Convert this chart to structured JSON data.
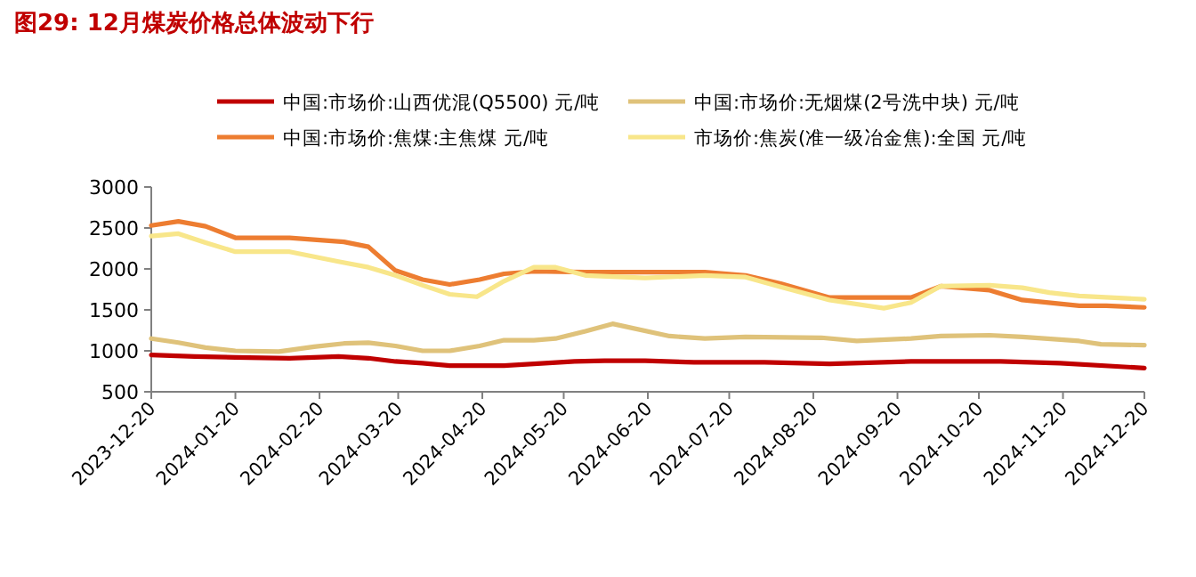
{
  "chart_data": {
    "type": "line",
    "title": "图29: 12月煤炭价格总体波动下行",
    "xlim": [
      "2023-12-20",
      "2024-12-20"
    ],
    "xticks": [
      "2023-12-20",
      "2024-01-20",
      "2024-02-20",
      "2024-03-20",
      "2024-04-20",
      "2024-05-20",
      "2024-06-20",
      "2024-07-20",
      "2024-08-20",
      "2024-09-20",
      "2024-10-20",
      "2024-11-20",
      "2024-12-20"
    ],
    "ylim": [
      500,
      3000
    ],
    "yticks": [
      500,
      1000,
      1500,
      2000,
      2500,
      3000
    ],
    "grid": false,
    "legend": "top",
    "marker": "none",
    "line_style": "solid",
    "series": [
      {
        "name": "中国:市场价:山西优混(Q5500) 元/吨",
        "color": "#c00000",
        "x": [
          "2023-12-20",
          "2024-01-05",
          "2024-01-20",
          "2024-02-09",
          "2024-02-27",
          "2024-03-09",
          "2024-03-19",
          "2024-03-29",
          "2024-04-08",
          "2024-04-28",
          "2024-05-09",
          "2024-05-24",
          "2024-06-04",
          "2024-06-19",
          "2024-07-07",
          "2024-08-02",
          "2024-08-26",
          "2024-09-25",
          "2024-10-28",
          "2024-11-19",
          "2024-12-20"
        ],
        "values": [
          950,
          930,
          920,
          910,
          930,
          910,
          870,
          850,
          820,
          820,
          840,
          870,
          880,
          880,
          860,
          860,
          840,
          870,
          870,
          850,
          790
        ]
      },
      {
        "name": "中国:市场价:无烟煤(2号洗中块) 元/吨",
        "color": "#dfc27a",
        "x": [
          "2023-12-20",
          "2023-12-30",
          "2024-01-09",
          "2024-01-20",
          "2024-02-05",
          "2024-02-18",
          "2024-02-29",
          "2024-03-09",
          "2024-03-19",
          "2024-03-29",
          "2024-04-08",
          "2024-04-19",
          "2024-04-28",
          "2024-05-09",
          "2024-05-17",
          "2024-05-28",
          "2024-06-07",
          "2024-06-28",
          "2024-07-11",
          "2024-07-26",
          "2024-08-23",
          "2024-09-05",
          "2024-09-25",
          "2024-10-06",
          "2024-10-24",
          "2024-11-05",
          "2024-11-26",
          "2024-12-04",
          "2024-12-20"
        ],
        "values": [
          1150,
          1100,
          1040,
          1000,
          990,
          1050,
          1090,
          1100,
          1060,
          1000,
          1000,
          1060,
          1130,
          1130,
          1150,
          1240,
          1330,
          1180,
          1150,
          1170,
          1160,
          1120,
          1150,
          1180,
          1190,
          1170,
          1120,
          1080,
          1070
        ]
      },
      {
        "name": "中国:市场价:焦煤:主焦煤 元/吨",
        "color": "#ed7d31",
        "x": [
          "2023-12-20",
          "2023-12-30",
          "2024-01-09",
          "2024-01-20",
          "2024-02-09",
          "2024-02-29",
          "2024-03-09",
          "2024-03-19",
          "2024-03-29",
          "2024-04-08",
          "2024-04-19",
          "2024-04-28",
          "2024-05-09",
          "2024-05-28",
          "2024-07-11",
          "2024-07-26",
          "2024-08-08",
          "2024-08-26",
          "2024-09-25",
          "2024-10-06",
          "2024-10-24",
          "2024-11-05",
          "2024-11-26",
          "2024-12-06",
          "2024-12-20"
        ],
        "values": [
          2530,
          2580,
          2520,
          2380,
          2380,
          2330,
          2270,
          1980,
          1870,
          1810,
          1870,
          1940,
          1970,
          1960,
          1960,
          1920,
          1820,
          1650,
          1650,
          1790,
          1740,
          1620,
          1550,
          1550,
          1530
        ]
      },
      {
        "name": "市场价:焦炭(准一级冶金焦):全国 元/吨",
        "color": "#f8e68a",
        "x": [
          "2023-12-20",
          "2023-12-30",
          "2024-01-09",
          "2024-01-20",
          "2024-02-09",
          "2024-02-27",
          "2024-03-09",
          "2024-03-19",
          "2024-03-29",
          "2024-04-08",
          "2024-04-18",
          "2024-04-28",
          "2024-05-09",
          "2024-05-17",
          "2024-05-28",
          "2024-06-19",
          "2024-07-11",
          "2024-07-26",
          "2024-08-08",
          "2024-08-26",
          "2024-09-15",
          "2024-09-25",
          "2024-10-06",
          "2024-10-24",
          "2024-11-05",
          "2024-11-15",
          "2024-11-26",
          "2024-12-20"
        ],
        "values": [
          2400,
          2430,
          2320,
          2210,
          2210,
          2090,
          2020,
          1920,
          1800,
          1690,
          1660,
          1850,
          2020,
          2020,
          1920,
          1890,
          1920,
          1900,
          1780,
          1620,
          1520,
          1590,
          1790,
          1800,
          1770,
          1710,
          1670,
          1630
        ]
      }
    ]
  }
}
